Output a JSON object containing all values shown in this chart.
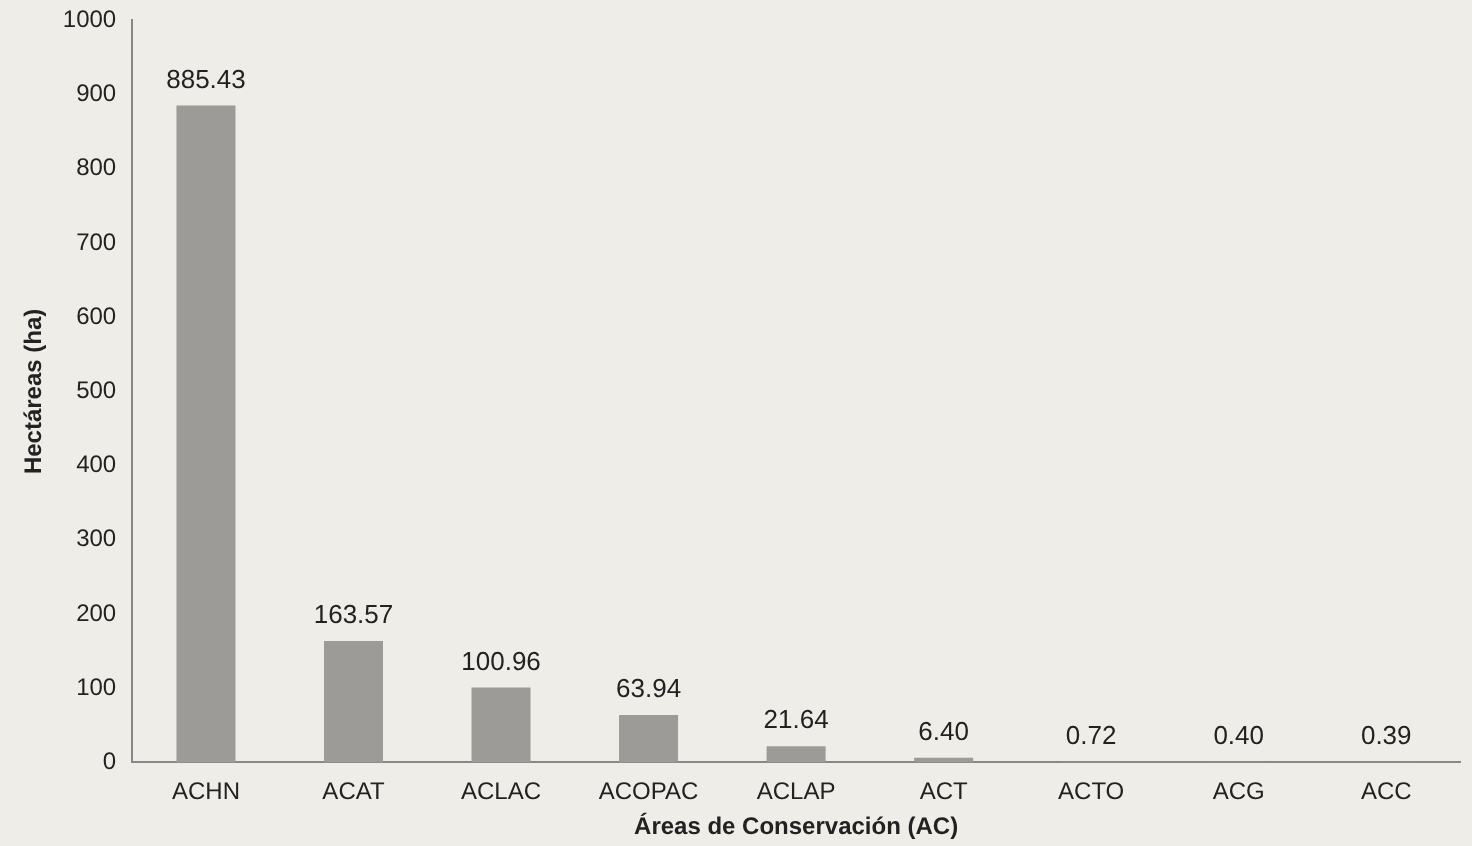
{
  "chart_data": {
    "type": "bar",
    "xlabel": "Áreas de Conservación (AC)",
    "ylabel": "Hectáreas (ha)",
    "categories": [
      "ACHN",
      "ACAT",
      "ACLAC",
      "ACOPAC",
      "ACLAP",
      "ACT",
      "ACTO",
      "ACG",
      "ACC"
    ],
    "values": [
      885.43,
      163.57,
      100.96,
      63.94,
      21.64,
      6.4,
      0.72,
      0.4,
      0.39
    ],
    "value_labels": [
      "885.43",
      "163.57",
      "100.96",
      "63.94",
      "21.64",
      "6.40",
      "0.72",
      "0.40",
      "0.39"
    ],
    "color": "#9c9b98",
    "ylim": [
      0,
      1000
    ],
    "yticks": [
      0,
      100,
      200,
      300,
      400,
      500,
      600,
      700,
      800,
      900,
      1000
    ],
    "grid": false,
    "legend": false
  }
}
